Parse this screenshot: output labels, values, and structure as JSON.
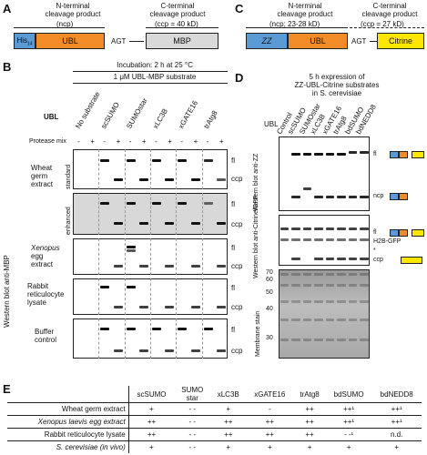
{
  "panelA": {
    "label": "A",
    "nterm_title": "N-terminal",
    "nterm_title2": "cleavage product",
    "nterm_size": "(ncp)",
    "cterm_title": "C-terminal",
    "cterm_title2": "cleavage product",
    "cterm_size": "(ccp = 40 kD)",
    "his": "His",
    "his_sub": "14",
    "ubl": "UBL",
    "agt": "AGT",
    "mbp": "MBP"
  },
  "panelB": {
    "label": "B",
    "incubation": "Incubation: 2 h at 25 °C",
    "substrate": "1 μM UBL-MBP substrate",
    "ubl_label": "UBL",
    "protease_label": "Protease mix",
    "columns": [
      "No substrate",
      "scSUMO",
      "SUMOstar",
      "xLC3B",
      "xGATE16",
      "trAtg8"
    ],
    "pm": [
      "-",
      "+",
      "-",
      "+",
      "-",
      "+",
      "-",
      "+",
      "-",
      "+",
      "-",
      "+"
    ],
    "side_label": "Western blot anti-MBP",
    "rows": {
      "wheat": "Wheat germ extract",
      "wheat_line1": "Wheat",
      "wheat_line2": "germ",
      "wheat_line3": "extract",
      "standard": "standard",
      "enhanced": "enhanced",
      "xenopus1": "Xenopus",
      "xenopus2": "egg",
      "xenopus3": "extract",
      "rabbit1": "Rabbit",
      "rabbit2": "reticulocyte",
      "rabbit3": "lysate",
      "buffer1": "Buffer",
      "buffer2": "control"
    },
    "fl": "fl",
    "ccp": "ccp"
  },
  "panelC": {
    "label": "C",
    "nterm_title": "N-terminal",
    "nterm_title2": "cleavage product",
    "nterm_size": "(ncp; 23-28 kD)",
    "cterm_title": "C-terminal",
    "cterm_title2": "cleavage product",
    "cterm_size": "(ccp = 27 kD)",
    "zz": "ZZ",
    "ubl": "UBL",
    "agt": "AGT",
    "citrine": "Citrine"
  },
  "panelD": {
    "label": "D",
    "title1": "5 h expression of",
    "title2": "ZZ-UBL-Citrine substrates",
    "title3": "in S. cerevisiae",
    "ubl_label": "UBL",
    "columns": [
      "Control",
      "scSUMO",
      "SUMOstar",
      "xLC3B",
      "xGATE16",
      "trAtg8",
      "bdSUMO",
      "bdNEDD8"
    ],
    "mw": [
      "70",
      "60",
      "50",
      "40",
      "30"
    ],
    "blot1_label": "Western blot anti-ZZ",
    "blot2_label": "Western blot anti-Citrine/GFP",
    "stain_label": "Membrane stain",
    "fl": "fl",
    "ncp": "ncp",
    "h2b": "H2B-GFP",
    "ccp": "ccp",
    "star": "*"
  },
  "panelE": {
    "label": "E",
    "headers": [
      "",
      "scSUMO",
      "SUMO star",
      "xLC3B",
      "xGATE16",
      "trAtg8",
      "bdSUMO",
      "bdNEDD8"
    ],
    "rows": [
      [
        "Wheat germ extract",
        "+",
        "- -",
        "+",
        "-",
        "++",
        "++¹",
        "++¹"
      ],
      [
        "Xenopus laevis egg extract",
        "++",
        "- -",
        "++",
        "++",
        "++",
        "++¹",
        "++¹"
      ],
      [
        "Rabbit reticulocyte lysate",
        "++",
        "- -",
        "++",
        "++",
        "++",
        "- -¹",
        "n.d."
      ],
      [
        "S. cerevisiae (in vivo)",
        "+",
        "- -",
        "+",
        "+",
        "+",
        "+",
        "+"
      ]
    ]
  },
  "colors": {
    "his": "#5b9bd5",
    "ubl": "#f28c28",
    "mbp": "#d9d9d9",
    "zz": "#5b9bd5",
    "citrine": "#ffe600"
  }
}
